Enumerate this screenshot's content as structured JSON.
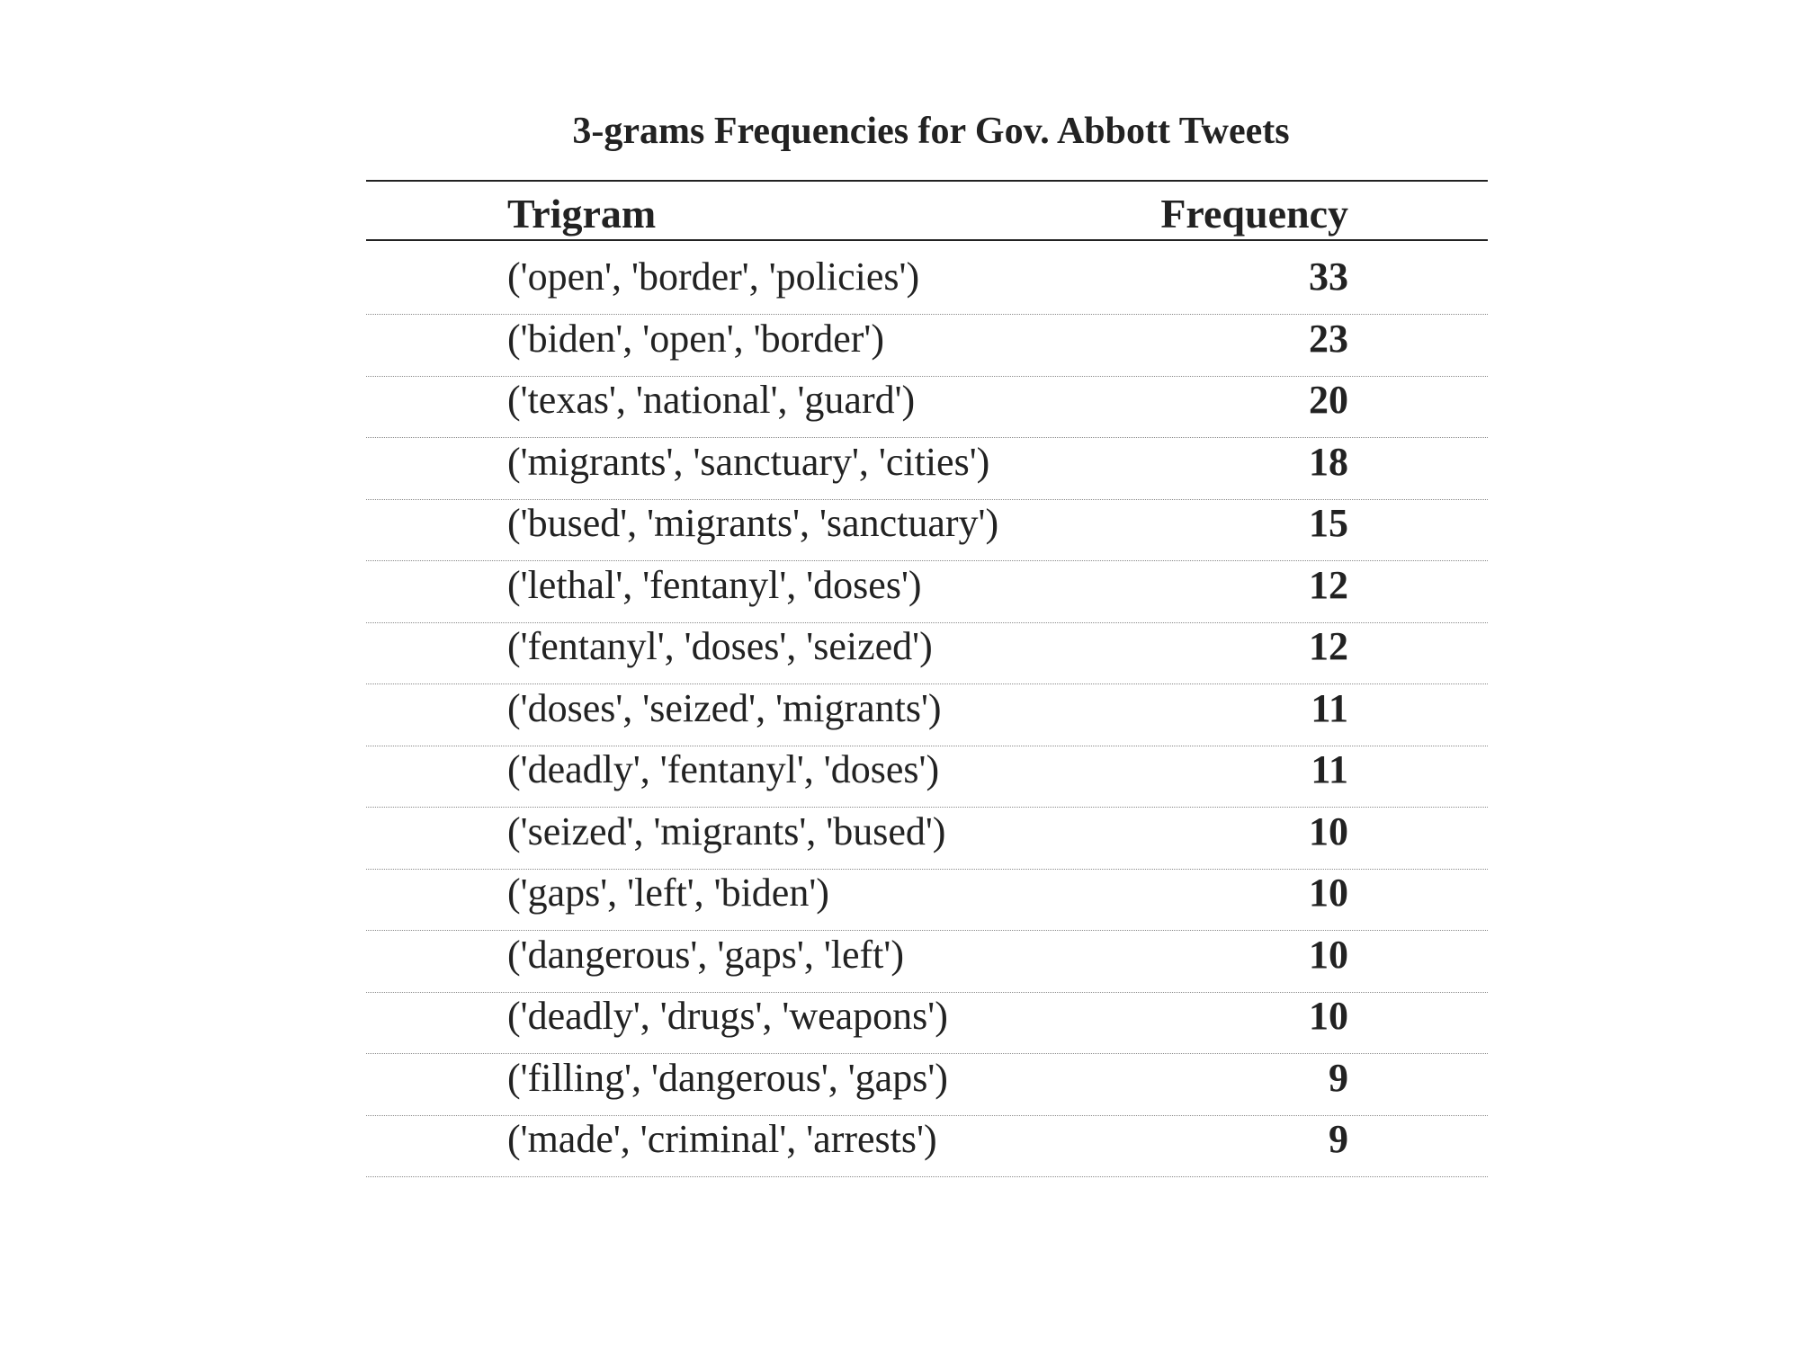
{
  "chart_data": {
    "type": "table",
    "title": "3-grams Frequencies for Gov. Abbott Tweets",
    "columns": [
      "Trigram",
      "Frequency"
    ],
    "rows": [
      {
        "trigram": "('open', 'border', 'policies')",
        "frequency": 33
      },
      {
        "trigram": "('biden', 'open', 'border')",
        "frequency": 23
      },
      {
        "trigram": "('texas', 'national', 'guard')",
        "frequency": 20
      },
      {
        "trigram": "('migrants', 'sanctuary', 'cities')",
        "frequency": 18
      },
      {
        "trigram": "('bused', 'migrants', 'sanctuary')",
        "frequency": 15
      },
      {
        "trigram": "('lethal', 'fentanyl', 'doses')",
        "frequency": 12
      },
      {
        "trigram": "('fentanyl', 'doses', 'seized')",
        "frequency": 12
      },
      {
        "trigram": "('doses', 'seized', 'migrants')",
        "frequency": 11
      },
      {
        "trigram": "('deadly', 'fentanyl', 'doses')",
        "frequency": 11
      },
      {
        "trigram": "('seized', 'migrants', 'bused')",
        "frequency": 10
      },
      {
        "trigram": "('gaps', 'left', 'biden')",
        "frequency": 10
      },
      {
        "trigram": "('dangerous', 'gaps', 'left')",
        "frequency": 10
      },
      {
        "trigram": "('deadly', 'drugs', 'weapons')",
        "frequency": 10
      },
      {
        "trigram": "('filling', 'dangerous', 'gaps')",
        "frequency": 9
      },
      {
        "trigram": "('made', 'criminal', 'arrests')",
        "frequency": 9
      }
    ]
  }
}
